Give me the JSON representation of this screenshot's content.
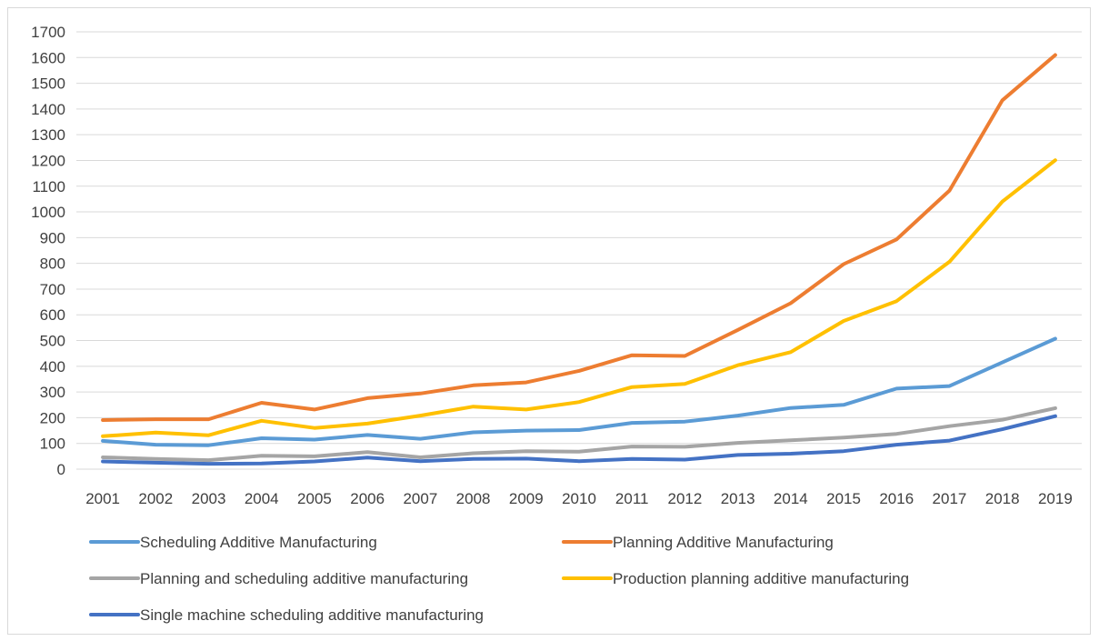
{
  "chart_data": {
    "type": "line",
    "title": "",
    "xlabel": "",
    "ylabel": "",
    "x": [
      "2001",
      "2002",
      "2003",
      "2004",
      "2005",
      "2006",
      "2007",
      "2008",
      "2009",
      "2010",
      "2011",
      "2012",
      "2013",
      "2014",
      "2015",
      "2016",
      "2017",
      "2018",
      "2019"
    ],
    "ylim": [
      0,
      1700
    ],
    "yticks": [
      0,
      100,
      200,
      300,
      400,
      500,
      600,
      700,
      800,
      900,
      1000,
      1100,
      1200,
      1300,
      1400,
      1500,
      1600,
      1700
    ],
    "grid": true,
    "legend_position": "bottom",
    "series": [
      {
        "name": "Scheduling Additive Manufacturing",
        "color": "#5b9bd5",
        "values": [
          110,
          95,
          93,
          120,
          115,
          133,
          118,
          143,
          150,
          152,
          180,
          185,
          208,
          238,
          250,
          313,
          323,
          415,
          507
        ]
      },
      {
        "name": "Planning Additive Manufacturing",
        "color": "#ed7d31",
        "values": [
          191,
          194,
          194,
          258,
          232,
          276,
          294,
          326,
          337,
          382,
          443,
          440,
          541,
          645,
          797,
          893,
          1083,
          1434,
          1610
        ]
      },
      {
        "name": "Planning and scheduling additive manufacturing",
        "color": "#a5a5a5",
        "values": [
          46,
          40,
          35,
          52,
          50,
          66,
          46,
          62,
          70,
          68,
          88,
          87,
          102,
          112,
          123,
          137,
          167,
          192,
          237
        ]
      },
      {
        "name": "Production planning additive manufacturing",
        "color": "#ffc000",
        "values": [
          128,
          142,
          132,
          188,
          160,
          177,
          208,
          243,
          232,
          261,
          319,
          331,
          404,
          455,
          576,
          653,
          806,
          1040,
          1201
        ]
      },
      {
        "name": "Single machine scheduling additive manufacturing",
        "color": "#4472c4",
        "values": [
          30,
          25,
          21,
          22,
          30,
          45,
          31,
          40,
          41,
          31,
          40,
          37,
          55,
          60,
          70,
          95,
          111,
          155,
          206
        ]
      }
    ]
  }
}
